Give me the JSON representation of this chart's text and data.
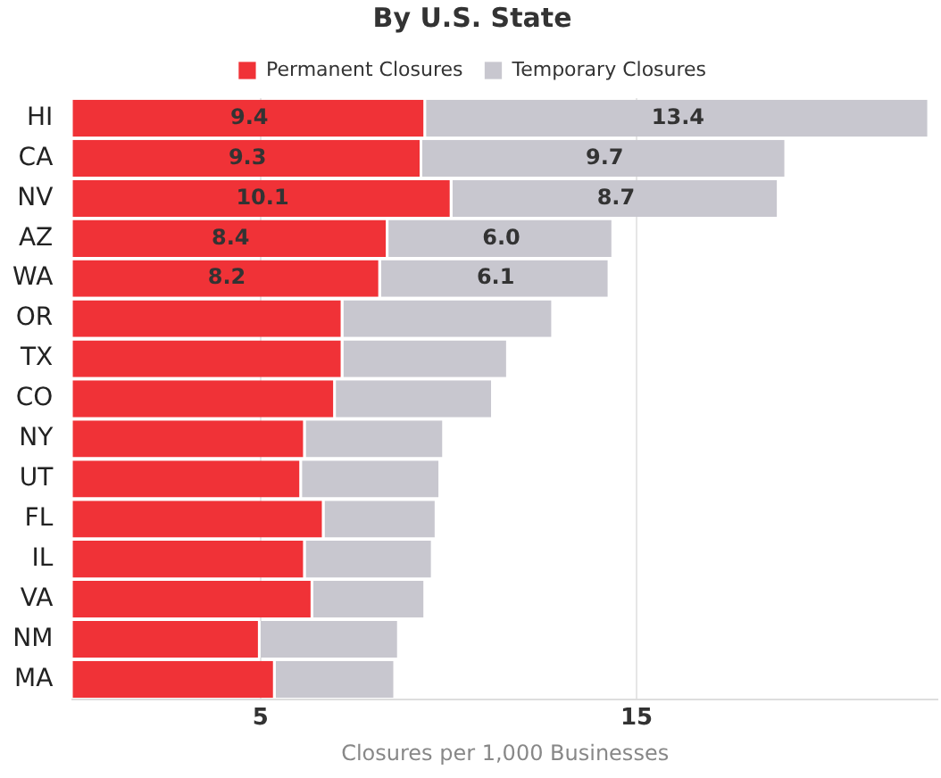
{
  "chart_data": {
    "type": "bar",
    "orientation": "horizontal",
    "stacked": true,
    "title": "By U.S. State",
    "xlabel": "Closures per 1,000 Businesses",
    "categories": [
      "HI",
      "CA",
      "NV",
      "AZ",
      "WA",
      "OR",
      "TX",
      "CO",
      "NY",
      "UT",
      "FL",
      "IL",
      "VA",
      "NM",
      "MA"
    ],
    "series": [
      {
        "name": "Permanent Closures",
        "color": "#f03237",
        "values": [
          9.4,
          9.3,
          10.1,
          8.4,
          8.2,
          7.2,
          7.2,
          7.0,
          6.2,
          6.1,
          6.7,
          6.2,
          6.4,
          5.0,
          5.4
        ],
        "value_labels": [
          "9.4",
          "9.3",
          "10.1",
          "8.4",
          "8.2",
          null,
          null,
          null,
          null,
          null,
          null,
          null,
          null,
          null,
          null
        ]
      },
      {
        "name": "Temporary Closures",
        "color": "#c8c7cf",
        "values": [
          13.4,
          9.7,
          8.7,
          6.0,
          6.1,
          5.6,
          4.4,
          4.2,
          3.7,
          3.7,
          3.0,
          3.4,
          3.0,
          3.7,
          3.2
        ],
        "value_labels": [
          "13.4",
          "9.7",
          "8.7",
          "6.0",
          "6.1",
          null,
          null,
          null,
          null,
          null,
          null,
          null,
          null,
          null,
          null
        ]
      }
    ],
    "xlim": [
      0,
      23
    ],
    "xticks": [
      5,
      15
    ],
    "grid": "x",
    "legend": "top"
  }
}
